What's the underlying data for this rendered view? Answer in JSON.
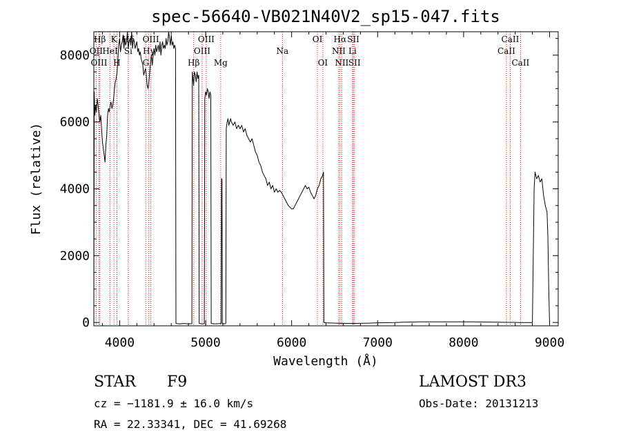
{
  "chart_data": {
    "type": "line",
    "title": "spec-56640-VB021N40V2_sp15-047.fits",
    "xlabel": "Wavelength (Å)",
    "ylabel": "Flux (relative)",
    "xlim": [
      3700,
      9100
    ],
    "ylim": [
      -100,
      8700
    ],
    "xticks": [
      4000,
      5000,
      6000,
      7000,
      8000,
      9000
    ],
    "yticks": [
      0,
      2000,
      4000,
      6000,
      8000
    ],
    "series": [
      {
        "name": "flux",
        "points": [
          [
            3700,
            300
          ],
          [
            3705,
            6900
          ],
          [
            3712,
            6200
          ],
          [
            3720,
            6500
          ],
          [
            3730,
            6300
          ],
          [
            3740,
            6700
          ],
          [
            3750,
            6500
          ],
          [
            3760,
            6200
          ],
          [
            3770,
            6000
          ],
          [
            3780,
            6200
          ],
          [
            3790,
            5800
          ],
          [
            3800,
            5400
          ],
          [
            3810,
            5200
          ],
          [
            3820,
            5000
          ],
          [
            3830,
            4800
          ],
          [
            3840,
            5300
          ],
          [
            3850,
            5600
          ],
          [
            3860,
            6200
          ],
          [
            3870,
            6400
          ],
          [
            3880,
            6300
          ],
          [
            3890,
            6500
          ],
          [
            3900,
            6600
          ],
          [
            3910,
            6400
          ],
          [
            3920,
            6500
          ],
          [
            3930,
            6700
          ],
          [
            3940,
            7000
          ],
          [
            3950,
            7200
          ],
          [
            3960,
            7300
          ],
          [
            3970,
            7500
          ],
          [
            3980,
            7900
          ],
          [
            3990,
            8300
          ],
          [
            4000,
            8500
          ],
          [
            4010,
            8100
          ],
          [
            4020,
            8300
          ],
          [
            4030,
            8400
          ],
          [
            4040,
            8600
          ],
          [
            4050,
            8200
          ],
          [
            4060,
            8500
          ],
          [
            4070,
            8300
          ],
          [
            4080,
            8400
          ],
          [
            4090,
            8700
          ],
          [
            4100,
            8200
          ],
          [
            4110,
            8400
          ],
          [
            4120,
            8500
          ],
          [
            4130,
            8300
          ],
          [
            4140,
            8700
          ],
          [
            4150,
            8200
          ],
          [
            4160,
            8500
          ],
          [
            4170,
            8400
          ],
          [
            4180,
            8200
          ],
          [
            4190,
            8300
          ],
          [
            4200,
            8400
          ],
          [
            4210,
            8100
          ],
          [
            4220,
            8200
          ],
          [
            4230,
            8000
          ],
          [
            4240,
            8100
          ],
          [
            4250,
            7900
          ],
          [
            4260,
            7800
          ],
          [
            4270,
            7700
          ],
          [
            4280,
            7400
          ],
          [
            4290,
            7500
          ],
          [
            4300,
            7600
          ],
          [
            4310,
            7400
          ],
          [
            4320,
            7100
          ],
          [
            4330,
            7000
          ],
          [
            4340,
            7200
          ],
          [
            4350,
            7500
          ],
          [
            4360,
            7800
          ],
          [
            4370,
            8000
          ],
          [
            4380,
            7700
          ],
          [
            4390,
            8000
          ],
          [
            4400,
            8200
          ],
          [
            4410,
            8000
          ],
          [
            4420,
            8300
          ],
          [
            4430,
            8100
          ],
          [
            4440,
            8200
          ],
          [
            4450,
            8300
          ],
          [
            4460,
            8100
          ],
          [
            4470,
            8400
          ],
          [
            4480,
            8000
          ],
          [
            4490,
            8300
          ],
          [
            4500,
            8400
          ],
          [
            4510,
            8200
          ],
          [
            4520,
            8300
          ],
          [
            4530,
            8200
          ],
          [
            4540,
            8500
          ],
          [
            4550,
            8300
          ],
          [
            4560,
            8400
          ],
          [
            4570,
            8700
          ],
          [
            4580,
            8500
          ],
          [
            4590,
            8300
          ],
          [
            4600,
            8600
          ],
          [
            4610,
            8300
          ],
          [
            4620,
            8400
          ],
          [
            4630,
            8200
          ],
          [
            4640,
            8300
          ],
          [
            4650,
            8200
          ],
          [
            4655,
            -30
          ],
          [
            4700,
            -40
          ],
          [
            4750,
            -30
          ],
          [
            4800,
            -40
          ],
          [
            4840,
            -35
          ],
          [
            4845,
            7500
          ],
          [
            4860,
            7100
          ],
          [
            4870,
            7500
          ],
          [
            4880,
            7400
          ],
          [
            4890,
            7200
          ],
          [
            4900,
            7500
          ],
          [
            4910,
            7300
          ],
          [
            4920,
            7400
          ],
          [
            4925,
            -30
          ],
          [
            4960,
            -40
          ],
          [
            4985,
            -35
          ],
          [
            4990,
            6700
          ],
          [
            5000,
            6900
          ],
          [
            5010,
            6800
          ],
          [
            5020,
            7000
          ],
          [
            5030,
            6900
          ],
          [
            5040,
            6700
          ],
          [
            5050,
            6900
          ],
          [
            5060,
            6800
          ],
          [
            5065,
            -30
          ],
          [
            5100,
            -40
          ],
          [
            5150,
            -35
          ],
          [
            5180,
            -30
          ],
          [
            5185,
            4300
          ],
          [
            5190,
            4300
          ],
          [
            5195,
            -30
          ],
          [
            5200,
            -40
          ],
          [
            5230,
            -35
          ],
          [
            5235,
            -20
          ],
          [
            5240,
            5800
          ],
          [
            5250,
            6000
          ],
          [
            5260,
            6100
          ],
          [
            5270,
            5900
          ],
          [
            5280,
            6000
          ],
          [
            5290,
            6100
          ],
          [
            5300,
            6000
          ],
          [
            5320,
            5900
          ],
          [
            5340,
            6000
          ],
          [
            5360,
            5800
          ],
          [
            5380,
            5900
          ],
          [
            5400,
            5800
          ],
          [
            5420,
            5900
          ],
          [
            5440,
            5700
          ],
          [
            5460,
            5800
          ],
          [
            5480,
            5600
          ],
          [
            5500,
            5500
          ],
          [
            5520,
            5400
          ],
          [
            5540,
            5500
          ],
          [
            5560,
            5300
          ],
          [
            5580,
            5100
          ],
          [
            5600,
            5000
          ],
          [
            5620,
            4800
          ],
          [
            5640,
            4700
          ],
          [
            5660,
            4500
          ],
          [
            5680,
            4400
          ],
          [
            5700,
            4300
          ],
          [
            5720,
            4100
          ],
          [
            5740,
            4200
          ],
          [
            5760,
            4000
          ],
          [
            5780,
            4100
          ],
          [
            5800,
            3900
          ],
          [
            5820,
            4000
          ],
          [
            5840,
            3900
          ],
          [
            5860,
            3950
          ],
          [
            5880,
            3900
          ],
          [
            5900,
            3800
          ],
          [
            5920,
            3700
          ],
          [
            5940,
            3600
          ],
          [
            5960,
            3500
          ],
          [
            5980,
            3450
          ],
          [
            6000,
            3400
          ],
          [
            6020,
            3400
          ],
          [
            6040,
            3500
          ],
          [
            6060,
            3600
          ],
          [
            6080,
            3700
          ],
          [
            6100,
            3800
          ],
          [
            6120,
            3900
          ],
          [
            6140,
            4000
          ],
          [
            6160,
            4100
          ],
          [
            6180,
            4000
          ],
          [
            6200,
            4050
          ],
          [
            6220,
            3900
          ],
          [
            6240,
            3800
          ],
          [
            6260,
            3700
          ],
          [
            6280,
            3800
          ],
          [
            6300,
            4000
          ],
          [
            6320,
            4100
          ],
          [
            6340,
            4300
          ],
          [
            6360,
            4400
          ],
          [
            6370,
            4500
          ],
          [
            6375,
            0
          ],
          [
            6400,
            -10
          ],
          [
            6500,
            -20
          ],
          [
            6700,
            -30
          ],
          [
            6900,
            -20
          ],
          [
            7000,
            -10
          ],
          [
            7200,
            0
          ],
          [
            7300,
            10
          ],
          [
            7500,
            20
          ],
          [
            7800,
            20
          ],
          [
            8100,
            20
          ],
          [
            8400,
            10
          ],
          [
            8700,
            0
          ],
          [
            8800,
            0
          ],
          [
            8820,
            4000
          ],
          [
            8830,
            4500
          ],
          [
            8850,
            4300
          ],
          [
            8870,
            4400
          ],
          [
            8890,
            4200
          ],
          [
            8910,
            4300
          ],
          [
            8930,
            3800
          ],
          [
            8950,
            3500
          ],
          [
            8970,
            3300
          ],
          [
            8980,
            2600
          ],
          [
            8990,
            1000
          ],
          [
            9000,
            -30
          ]
        ]
      }
    ],
    "spectral_lines": [
      {
        "label": "Hβ",
        "wavelength": 3770,
        "row": 0
      },
      {
        "label": "OII",
        "wavelength": 3727,
        "row": 1
      },
      {
        "label": "OIII",
        "wavelength": 3760,
        "row": 2
      },
      {
        "label": "K",
        "wavelength": 3934,
        "row": 0
      },
      {
        "label": "HeI",
        "wavelength": 3889,
        "row": 1
      },
      {
        "label": "H",
        "wavelength": 3968,
        "row": 2
      },
      {
        "label": "Hδ",
        "wavelength": 4102,
        "row": 0
      },
      {
        "label": "Si",
        "wavelength": 4100,
        "row": 1
      },
      {
        "label": "OIII",
        "wavelength": 4363,
        "row": 0
      },
      {
        "label": "Hγ",
        "wavelength": 4340,
        "row": 1
      },
      {
        "label": "G",
        "wavelength": 4305,
        "row": 2
      },
      {
        "label": "OIII",
        "wavelength": 5007,
        "row": 0
      },
      {
        "label": "OIII",
        "wavelength": 4959,
        "row": 1
      },
      {
        "label": "Hβ",
        "wavelength": 4861,
        "row": 2
      },
      {
        "label": "Mg",
        "wavelength": 5175,
        "row": 2
      },
      {
        "label": "Na",
        "wavelength": 5893,
        "row": 1
      },
      {
        "label": "OI",
        "wavelength": 6300,
        "row": 0
      },
      {
        "label": "OI",
        "wavelength": 6363,
        "row": 2
      },
      {
        "label": "Hα",
        "wavelength": 6563,
        "row": 0
      },
      {
        "label": "SII",
        "wavelength": 6717,
        "row": 0
      },
      {
        "label": "NII",
        "wavelength": 6548,
        "row": 1
      },
      {
        "label": "Li",
        "wavelength": 6708,
        "row": 1
      },
      {
        "label": "NII",
        "wavelength": 6583,
        "row": 2
      },
      {
        "label": "SII",
        "wavelength": 6731,
        "row": 2
      },
      {
        "label": "CaII",
        "wavelength": 8542,
        "row": 0
      },
      {
        "label": "CaII",
        "wavelength": 8498,
        "row": 1
      },
      {
        "label": "CaII",
        "wavelength": 8662,
        "row": 2
      }
    ],
    "line_color": "#ff0000",
    "flux_color": "#000000",
    "annotations": {
      "object_class": "STAR",
      "subclass": "F9",
      "redshift": "cz = −1181.9 ± 16.0 km/s",
      "position": "RA =  22.33341, DEC =  41.69268",
      "survey": "LAMOST DR3",
      "obs_date": "Obs-Date: 20131213"
    }
  }
}
